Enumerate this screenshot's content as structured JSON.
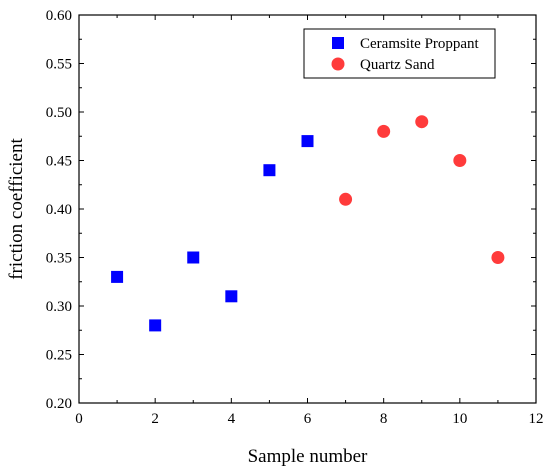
{
  "chart_data": {
    "type": "scatter",
    "xlabel": "Sample number",
    "ylabel": "friction coefficient",
    "xlim": [
      0,
      12
    ],
    "ylim": [
      0.2,
      0.6
    ],
    "x_ticks": [
      "0",
      "2",
      "4",
      "6",
      "8",
      "10",
      "12"
    ],
    "y_ticks": [
      "0.20",
      "0.25",
      "0.30",
      "0.35",
      "0.40",
      "0.45",
      "0.50",
      "0.55",
      "0.60"
    ],
    "grid": false,
    "legend_position": "top-right",
    "series": [
      {
        "name": "Ceramsite Proppant",
        "marker": "square",
        "color": "#0000ff",
        "x": [
          1,
          2,
          3,
          4,
          5,
          6
        ],
        "y": [
          0.33,
          0.28,
          0.35,
          0.31,
          0.44,
          0.47
        ]
      },
      {
        "name": "Quartz Sand",
        "marker": "circle",
        "color": "#ff3b3b",
        "x": [
          7,
          8,
          9,
          10,
          11
        ],
        "y": [
          0.41,
          0.48,
          0.49,
          0.45,
          0.35
        ]
      }
    ]
  }
}
